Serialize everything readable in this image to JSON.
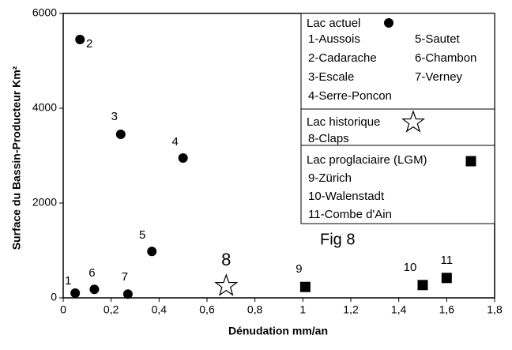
{
  "chart_data": {
    "type": "scatter",
    "annotation": "Fig 8",
    "xlabel": "Dénudation mm/an",
    "ylabel": "Surface du Bassin-Producteur Km²",
    "xlim": [
      0,
      1.8
    ],
    "ylim": [
      0,
      6000
    ],
    "xticks": [
      0,
      {
        "value": 0.2,
        "label": "0,2"
      },
      {
        "value": 0.4,
        "label": "0,4"
      },
      {
        "value": 0.6,
        "label": "0,6"
      },
      {
        "value": 0.8,
        "label": "0,8"
      },
      1,
      {
        "value": 1.2,
        "label": "1,2"
      },
      {
        "value": 1.4,
        "label": "1,4"
      },
      {
        "value": 1.6,
        "label": "1,6"
      },
      {
        "value": 1.8,
        "label": "1,8"
      }
    ],
    "yticks": [
      0,
      2000,
      4000,
      6000
    ],
    "series": [
      {
        "name": "Lac actuel",
        "marker": "circle",
        "color": "#000000",
        "x": [
          0.05,
          0.07,
          0.24,
          0.5,
          0.37,
          0.13,
          0.27
        ],
        "values": [
          100,
          5450,
          3450,
          2950,
          980,
          180,
          80
        ],
        "point_labels": [
          "1",
          "2",
          "3",
          "4",
          "5",
          "6",
          "7"
        ],
        "legend_items": [
          "1-Aussois",
          "2-Cadarache",
          "3-Escale",
          "4-Serre-Poncon",
          "5-Sautet",
          "6-Chambon",
          "7-Verney"
        ]
      },
      {
        "name": "Lac historique",
        "marker": "star",
        "color": "#000000",
        "x": [
          0.68
        ],
        "values": [
          250
        ],
        "point_labels": [
          "8"
        ],
        "legend_items": [
          "8-Claps"
        ]
      },
      {
        "name": "Lac proglaciaire (LGM)",
        "marker": "square",
        "color": "#000000",
        "x": [
          1.01,
          1.5,
          1.6
        ],
        "values": [
          230,
          270,
          420
        ],
        "point_labels": [
          "9",
          "10",
          "11"
        ],
        "legend_items": [
          "9-Zürich",
          "10-Walenstadt",
          "11-Combe d'Ain"
        ]
      }
    ]
  }
}
